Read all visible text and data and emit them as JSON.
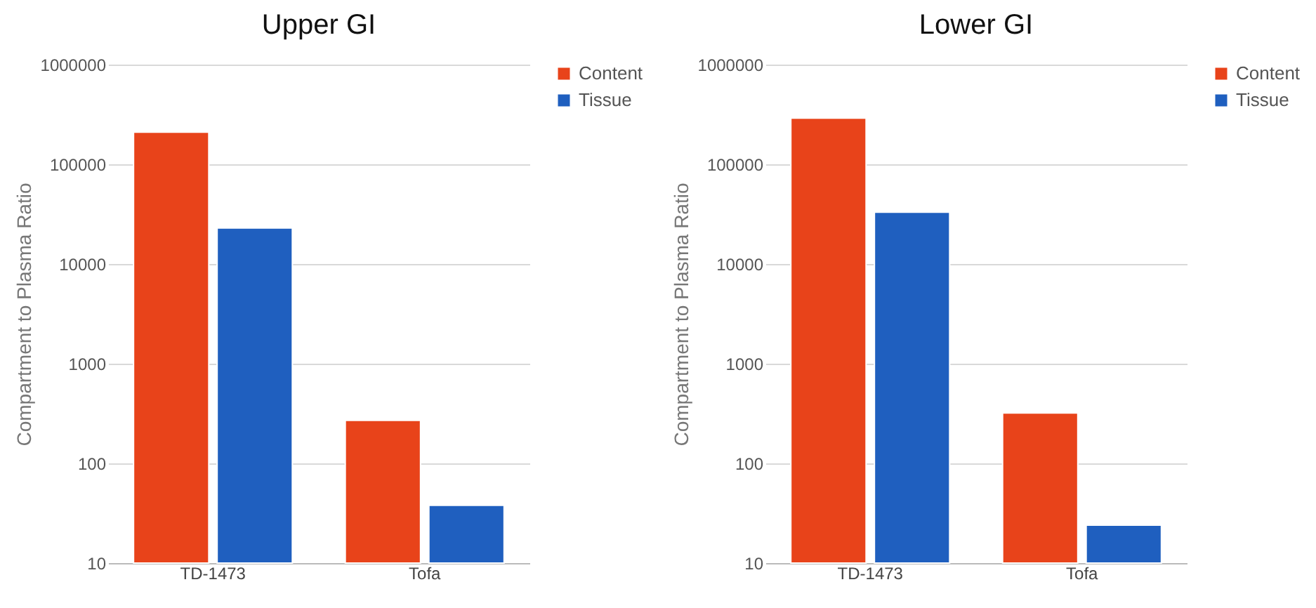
{
  "chart_data": [
    {
      "type": "bar",
      "title": "Upper GI",
      "ylabel": "Compartment to Plasma Ratio",
      "categories": [
        "TD-1473",
        "Tofa"
      ],
      "series": [
        {
          "name": "Content",
          "color": "#e8431a",
          "values": [
            210000,
            270
          ]
        },
        {
          "name": "Tissue",
          "color": "#1f5fbf",
          "values": [
            23000,
            38
          ]
        }
      ],
      "ylim": [
        10,
        1000000
      ],
      "yticks": [
        10,
        100,
        1000,
        10000,
        100000,
        1000000
      ],
      "log": true,
      "grid": "y",
      "legend": "right"
    },
    {
      "type": "bar",
      "title": "Lower GI",
      "ylabel": "Compartment to Plasma Ratio",
      "categories": [
        "TD-1473",
        "Tofa"
      ],
      "series": [
        {
          "name": "Content",
          "color": "#e8431a",
          "values": [
            290000,
            320
          ]
        },
        {
          "name": "Tissue",
          "color": "#1f5fbf",
          "values": [
            33000,
            24
          ]
        }
      ],
      "ylim": [
        10,
        1000000
      ],
      "yticks": [
        10,
        100,
        1000,
        10000,
        100000,
        1000000
      ],
      "log": true,
      "grid": "y",
      "legend": "right"
    }
  ]
}
